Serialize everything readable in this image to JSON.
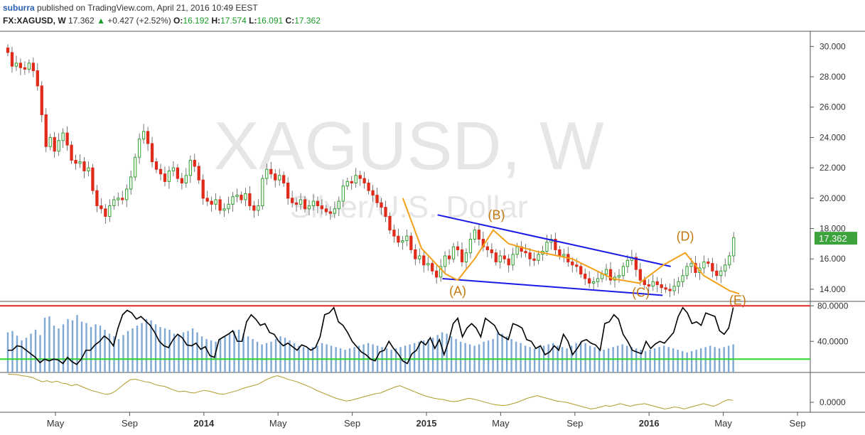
{
  "header": {
    "author": "suburra",
    "publish_text": "published on TradingView.com, April 21, 2016 10:49 EEST",
    "symbol": "FX:XAGUSD, W",
    "last": "17.362",
    "change_arrow": "▲",
    "change": "+0.427 (+2.52%)",
    "o_label": "O:",
    "o_value": "16.192",
    "h_label": "H:",
    "h_value": "17.574",
    "l_label": "L:",
    "l_value": "16.091",
    "c_label": "C:",
    "c_value": "17.362"
  },
  "watermark": {
    "title": "XAGUSD, W",
    "subtitle": "Silver/U.S. Dollar"
  },
  "colors": {
    "up": "#2ea02e",
    "down": "#e02a1a",
    "trendline": "#1a1ae6",
    "wave": "#f5a01a",
    "wave_label": "#c47a10",
    "rsi_line": "#000000",
    "volume": "#7fa9d4",
    "overbought": "#e02a2a",
    "oversold": "#2ad62a",
    "momentum": "#b09a2a",
    "price_badge": "#3ca33c"
  },
  "chart_data": [
    {
      "type": "candlestick",
      "name": "price",
      "y_ticks": [
        "30.000",
        "28.000",
        "26.000",
        "24.000",
        "22.000",
        "20.000",
        "18.000",
        "16.000",
        "14.000"
      ],
      "ylim": [
        13.2,
        31.0
      ],
      "x_ticks": [
        "May",
        "Sep",
        "2014",
        "May",
        "Sep",
        "2015",
        "May",
        "Sep",
        "2016",
        "May",
        "Sep"
      ],
      "last_price_label": "17.362",
      "close": [
        29.6,
        28.7,
        28.9,
        28.6,
        28.5,
        28.9,
        28.4,
        27.4,
        25.5,
        23.4,
        24.0,
        23.1,
        23.8,
        24.3,
        23.5,
        22.5,
        22.3,
        22.4,
        21.8,
        22.0,
        20.5,
        19.5,
        19.3,
        18.8,
        19.5,
        19.9,
        20.0,
        19.9,
        20.6,
        21.4,
        22.7,
        23.9,
        24.4,
        23.6,
        22.4,
        21.9,
        21.6,
        21.1,
        21.8,
        22.0,
        21.3,
        21.0,
        21.5,
        22.5,
        22.1,
        21.2,
        20.0,
        19.8,
        19.6,
        19.9,
        19.2,
        19.3,
        19.6,
        20.1,
        20.2,
        19.9,
        20.3,
        19.5,
        19.2,
        19.5,
        21.3,
        21.9,
        21.6,
        21.2,
        21.5,
        21.0,
        20.0,
        19.7,
        19.6,
        19.9,
        19.3,
        19.5,
        19.8,
        19.5,
        19.3,
        19.1,
        19.0,
        19.3,
        19.8,
        20.8,
        21.1,
        21.0,
        21.5,
        21.3,
        21.0,
        20.5,
        20.2,
        19.7,
        19.4,
        18.8,
        17.9,
        17.5,
        17.1,
        17.2,
        17.5,
        16.6,
        16.0,
        16.2,
        15.6,
        15.7,
        15.2,
        14.8,
        15.5,
        16.2,
        16.0,
        16.8,
        16.6,
        15.8,
        16.4,
        17.3,
        17.9,
        17.3,
        16.8,
        16.6,
        16.4,
        15.8,
        16.2,
        16.0,
        15.6,
        16.3,
        16.8,
        16.5,
        16.4,
        16.0,
        15.9,
        16.3,
        16.5,
        17.1,
        17.3,
        16.6,
        16.2,
        16.3,
        15.8,
        15.6,
        15.5,
        15.0,
        14.7,
        14.4,
        14.5,
        14.7,
        15.0,
        15.3,
        14.6,
        14.8,
        14.9,
        15.5,
        15.9,
        16.1,
        15.3,
        14.6,
        14.3,
        14.2,
        14.5,
        14.3,
        14.1,
        14.0,
        13.9,
        14.2,
        14.5,
        14.9,
        15.5,
        15.7,
        15.1,
        15.4,
        15.8,
        15.7,
        15.2,
        14.9,
        15.2,
        15.6,
        16.2,
        17.4
      ],
      "lower_trendline": {
        "start": [
          0.544,
          14.7
        ],
        "end": [
          0.817,
          13.6
        ]
      },
      "upper_trendline": {
        "start": [
          0.538,
          18.9
        ],
        "end": [
          0.827,
          15.5
        ]
      },
      "wave_points": [
        [
          0.495,
          20.0
        ],
        [
          0.518,
          16.7
        ],
        [
          0.548,
          15.0
        ],
        [
          0.563,
          14.6
        ],
        [
          0.584,
          16.0
        ],
        [
          0.607,
          17.9
        ],
        [
          0.626,
          17.0
        ],
        [
          0.66,
          16.5
        ],
        [
          0.705,
          16.0
        ],
        [
          0.755,
          14.7
        ],
        [
          0.788,
          14.4
        ],
        [
          0.818,
          15.6
        ],
        [
          0.845,
          16.4
        ],
        [
          0.868,
          14.9
        ],
        [
          0.9,
          13.9
        ],
        [
          0.912,
          13.7
        ]
      ],
      "wave_labels": [
        {
          "text": "(A)",
          "x": 0.563,
          "y": 13.6
        },
        {
          "text": "(B)",
          "x": 0.611,
          "y": 18.6
        },
        {
          "text": "(C)",
          "x": 0.79,
          "y": 13.5
        },
        {
          "text": "(D)",
          "x": 0.845,
          "y": 17.2
        },
        {
          "text": "(E)",
          "x": 0.91,
          "y": 13.0
        }
      ]
    },
    {
      "type": "line",
      "name": "oscillator",
      "y_ticks": [
        "80.0000",
        "40.0000"
      ],
      "ylim": [
        5,
        85
      ],
      "overbought": 80,
      "oversold": 20,
      "values": [
        30,
        30,
        35,
        34,
        30,
        26,
        22,
        16,
        20,
        18,
        20,
        19,
        15,
        22,
        17,
        14,
        20,
        30,
        30,
        36,
        40,
        46,
        42,
        35,
        55,
        70,
        75,
        72,
        65,
        68,
        63,
        58,
        50,
        40,
        35,
        33,
        42,
        48,
        44,
        36,
        35,
        38,
        31,
        34,
        24,
        22,
        42,
        45,
        48,
        52,
        40,
        40,
        62,
        70,
        65,
        58,
        60,
        50,
        48,
        40,
        35,
        38,
        34,
        30,
        36,
        34,
        30,
        33,
        45,
        70,
        72,
        78,
        62,
        58,
        50,
        40,
        34,
        28,
        25,
        20,
        18,
        28,
        30,
        40,
        32,
        26,
        18,
        15,
        26,
        30,
        40,
        36,
        44,
        32,
        42,
        25,
        40,
        60,
        66,
        45,
        55,
        60,
        55,
        45,
        66,
        62,
        58,
        48,
        45,
        42,
        60,
        58,
        55,
        42,
        40,
        32,
        35,
        25,
        28,
        35,
        30,
        48,
        40,
        25,
        32,
        40,
        42,
        38,
        36,
        30,
        60,
        62,
        70,
        65,
        48,
        40,
        30,
        28,
        26,
        40,
        32,
        37,
        40,
        38,
        44,
        50,
        68,
        78,
        72,
        60,
        62,
        58,
        72,
        70,
        68,
        52,
        48,
        55,
        78
      ]
    },
    {
      "type": "bar",
      "name": "volume",
      "values": [
        60,
        62,
        55,
        48,
        52,
        58,
        64,
        56,
        82,
        84,
        70,
        66,
        72,
        80,
        78,
        86,
        76,
        74,
        68,
        72,
        70,
        64,
        58,
        54,
        50,
        56,
        62,
        66,
        70,
        74,
        80,
        78,
        72,
        68,
        66,
        64,
        58,
        56,
        60,
        62,
        66,
        60,
        54,
        50,
        48,
        46,
        50,
        54,
        58,
        62,
        64,
        58,
        54,
        50,
        46,
        42,
        44,
        46,
        50,
        54,
        52,
        48,
        44,
        40,
        38,
        36,
        38,
        40,
        44,
        42,
        40,
        38,
        36,
        34,
        36,
        38,
        40,
        42,
        44,
        42,
        40,
        38,
        36,
        34,
        36,
        38,
        40,
        42,
        44,
        46,
        48,
        50,
        52,
        56,
        60,
        58,
        54,
        50,
        46,
        44,
        42,
        40,
        42,
        46,
        48,
        50,
        60,
        58,
        54,
        50,
        46,
        44,
        40,
        38,
        36,
        38,
        40,
        42,
        44,
        40,
        38,
        36,
        40,
        44,
        46,
        44,
        40,
        38,
        36,
        34,
        36,
        38,
        40,
        42,
        40,
        38,
        36,
        34,
        32,
        34,
        36,
        38,
        40,
        38,
        36,
        34,
        32,
        30,
        32,
        34,
        36,
        38,
        40,
        38,
        36,
        38,
        40,
        42
      ]
    },
    {
      "type": "line",
      "name": "momentum",
      "y_ticks": [
        "0.0000"
      ],
      "ylim": [
        -3,
        9
      ],
      "values": [
        8.5,
        8.4,
        8.3,
        8.0,
        7.8,
        7.5,
        6.8,
        6.2,
        6.5,
        6.0,
        6.4,
        5.8,
        5.6,
        5.0,
        5.4,
        4.8,
        4.2,
        3.6,
        3.2,
        2.8,
        2.4,
        2.6,
        3.4,
        4.6,
        5.8,
        6.8,
        7.0,
        6.6,
        6.2,
        6.0,
        5.4,
        5.0,
        4.8,
        4.2,
        3.6,
        3.2,
        3.4,
        3.0,
        2.8,
        3.2,
        3.6,
        3.4,
        3.0,
        2.6,
        2.4,
        2.8,
        3.2,
        3.6,
        4.2,
        4.6,
        5.0,
        5.4,
        6.2,
        7.0,
        7.6,
        8.0,
        7.6,
        7.0,
        6.6,
        6.2,
        5.6,
        5.0,
        4.4,
        3.6,
        3.0,
        2.4,
        1.8,
        1.2,
        0.8,
        0.4,
        0.6,
        1.0,
        1.4,
        1.8,
        2.2,
        2.6,
        2.8,
        3.4,
        4.0,
        4.6,
        5.0,
        4.4,
        3.8,
        3.2,
        2.6,
        2.0,
        1.6,
        1.2,
        1.0,
        0.8,
        0.4,
        0.2,
        0.4,
        0.8,
        1.2,
        1.0,
        0.6,
        0.2,
        -0.2,
        -0.6,
        -0.8,
        -1.0,
        -0.8,
        -0.4,
        0.0,
        0.6,
        1.2,
        1.6,
        2.0,
        1.6,
        1.2,
        0.8,
        0.4,
        0.2,
        0.0,
        -0.4,
        -0.8,
        -1.2,
        -1.6,
        -2.0,
        -1.8,
        -1.4,
        -1.0,
        -1.2,
        -0.8,
        -0.4,
        -0.8,
        -1.2,
        -0.8,
        -0.6,
        -0.4,
        -0.8,
        -1.2,
        -1.6,
        -2.0,
        -1.8,
        -1.4,
        -1.6,
        -2.0,
        -1.6,
        -1.2,
        -0.8,
        -0.4,
        -0.8,
        -1.2,
        -0.6,
        0.2,
        0.8,
        0.6
      ]
    }
  ]
}
